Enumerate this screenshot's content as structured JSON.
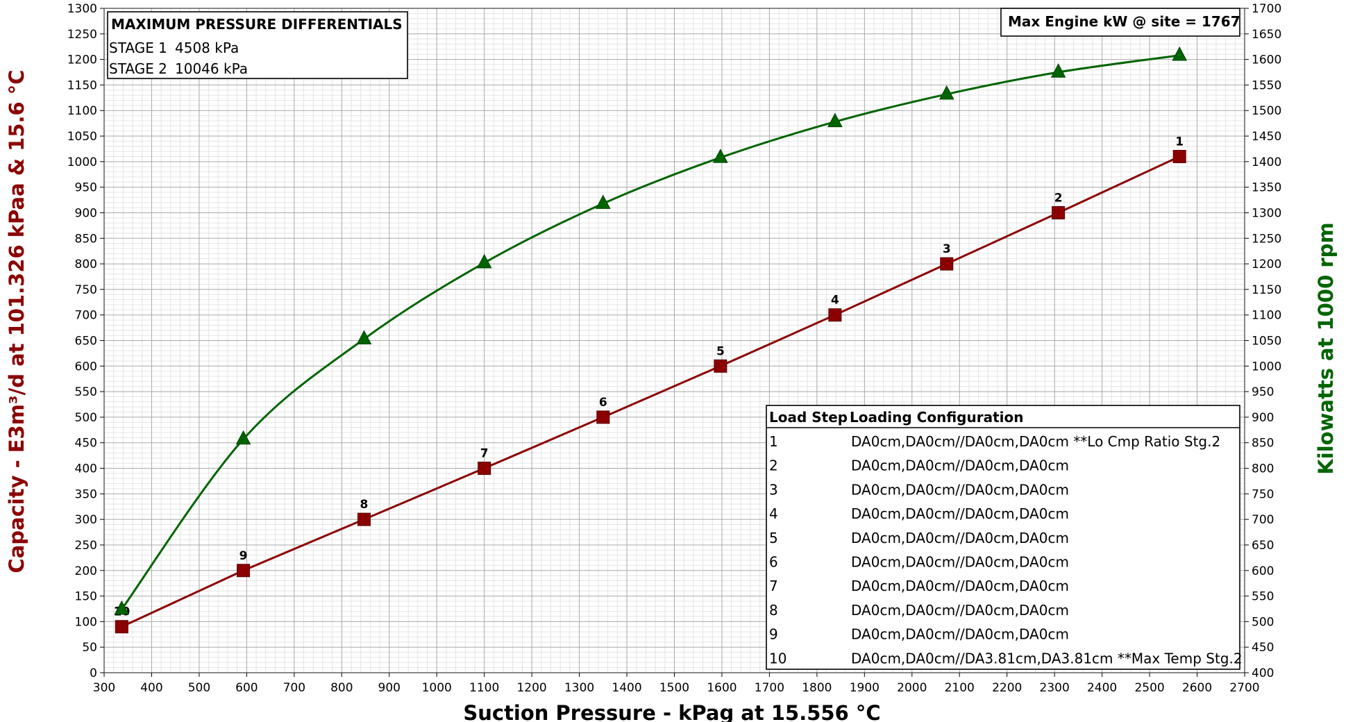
{
  "chart_data": {
    "type": "line",
    "xlabel": "Suction Pressure - kPag at 15.556 °C",
    "ylabel_left": "Capacity - E3m³/d at 101.326 kPaa & 15.6 °C",
    "ylabel_right": "Kilowatts at 1000 rpm",
    "xlim": [
      300,
      2700
    ],
    "ylim_left": [
      0,
      1300
    ],
    "ylim_right": [
      400,
      1700
    ],
    "x_ticks": [
      "300",
      "400",
      "500",
      "600",
      "700",
      "800",
      "900",
      "1000",
      "1100",
      "1200",
      "1300",
      "1400",
      "1500",
      "1600",
      "1700",
      "1800",
      "1900",
      "2000",
      "2100",
      "2200",
      "2300",
      "2400",
      "2500",
      "2600",
      "2700"
    ],
    "y_left_ticks": [
      "0",
      "50",
      "100",
      "150",
      "200",
      "250",
      "300",
      "350",
      "400",
      "450",
      "500",
      "550",
      "600",
      "650",
      "700",
      "750",
      "800",
      "850",
      "900",
      "950",
      "1000",
      "1050",
      "1100",
      "1150",
      "1200",
      "1250",
      "1300"
    ],
    "y_right_ticks": [
      "400",
      "450",
      "500",
      "550",
      "600",
      "650",
      "700",
      "750",
      "800",
      "850",
      "900",
      "950",
      "1000",
      "1050",
      "1100",
      "1150",
      "1200",
      "1250",
      "1300",
      "1350",
      "1400",
      "1450",
      "1500",
      "1550",
      "1600",
      "1650",
      "1700"
    ],
    "grid": true,
    "series": [
      {
        "axis": "left",
        "marker": "square",
        "color": "#8b0000",
        "point_labels": [
          "1",
          "2",
          "3",
          "4",
          "5",
          "6",
          "7",
          "8",
          "9",
          "10"
        ],
        "x": [
          2563,
          2308,
          2073,
          1838,
          1597,
          1350,
          1100,
          847,
          593,
          337
        ],
        "y": [
          1010,
          900,
          800,
          700,
          600,
          500,
          400,
          300,
          200,
          90
        ]
      },
      {
        "axis": "right",
        "marker": "triangle",
        "color": "#006400",
        "x": [
          2563,
          2308,
          2073,
          1838,
          1597,
          1350,
          1100,
          847,
          593,
          337
        ],
        "y": [
          1608,
          1575,
          1532,
          1478,
          1408,
          1318,
          1202,
          1053,
          857,
          524
        ]
      }
    ]
  },
  "pressure_box": {
    "title": "MAXIMUM PRESSURE DIFFERENTIALS",
    "rows": [
      {
        "stage": "STAGE 1",
        "value": "4508 kPa"
      },
      {
        "stage": "STAGE 2",
        "value": "10046 kPa"
      }
    ]
  },
  "engine_box": {
    "text": "Max Engine kW @ site = 1767"
  },
  "load_table": {
    "headers": [
      "Load Step",
      "Loading Configuration"
    ],
    "rows": [
      {
        "step": "1",
        "config": "DA0cm,DA0cm//DA0cm,DA0cm **Lo Cmp Ratio Stg.2"
      },
      {
        "step": "2",
        "config": "DA0cm,DA0cm//DA0cm,DA0cm"
      },
      {
        "step": "3",
        "config": "DA0cm,DA0cm//DA0cm,DA0cm"
      },
      {
        "step": "4",
        "config": "DA0cm,DA0cm//DA0cm,DA0cm"
      },
      {
        "step": "5",
        "config": "DA0cm,DA0cm//DA0cm,DA0cm"
      },
      {
        "step": "6",
        "config": "DA0cm,DA0cm//DA0cm,DA0cm"
      },
      {
        "step": "7",
        "config": "DA0cm,DA0cm//DA0cm,DA0cm"
      },
      {
        "step": "8",
        "config": "DA0cm,DA0cm//DA0cm,DA0cm"
      },
      {
        "step": "9",
        "config": "DA0cm,DA0cm//DA0cm,DA0cm"
      },
      {
        "step": "10",
        "config": "DA0cm,DA0cm//DA3.81cm,DA3.81cm **Max Temp Stg.2"
      }
    ]
  }
}
